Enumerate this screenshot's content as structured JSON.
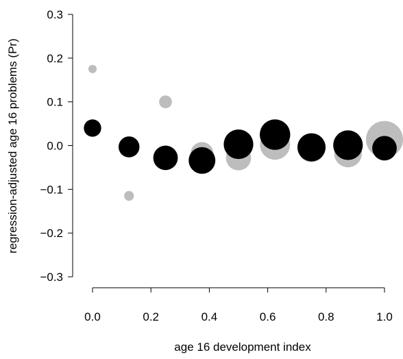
{
  "chart_data": {
    "type": "scatter",
    "title": "",
    "xlabel": "age 16 development index",
    "ylabel": "regression-adjusted age 16 problems (Pr)",
    "xlim": [
      0.0,
      1.0
    ],
    "ylim": [
      -0.3,
      0.3
    ],
    "xticks": [
      "0.0",
      "0.2",
      "0.4",
      "0.6",
      "0.8",
      "1.0"
    ],
    "yticks": [
      "-0.3",
      "-0.2",
      "-0.1",
      "0.0",
      "0.1",
      "0.2",
      "0.3"
    ],
    "grid": false,
    "legend": "none",
    "series": [
      {
        "color": "#bdbdbd",
        "points": [
          {
            "x": 0.0,
            "y": 0.175,
            "size": 0.05
          },
          {
            "x": 0.125,
            "y": -0.115,
            "size": 0.07
          },
          {
            "x": 0.25,
            "y": 0.1,
            "size": 0.12
          },
          {
            "x": 0.375,
            "y": -0.018,
            "size": 0.38
          },
          {
            "x": 0.5,
            "y": -0.028,
            "size": 0.46
          },
          {
            "x": 0.625,
            "y": 0.002,
            "size": 0.66
          },
          {
            "x": 0.75,
            "y": -0.008,
            "size": 0.5
          },
          {
            "x": 0.875,
            "y": -0.018,
            "size": 0.56
          },
          {
            "x": 1.0,
            "y": 0.014,
            "size": 1.0
          }
        ]
      },
      {
        "color": "#000000",
        "points": [
          {
            "x": 0.0,
            "y": 0.04,
            "size": 0.22
          },
          {
            "x": 0.125,
            "y": -0.003,
            "size": 0.32
          },
          {
            "x": 0.25,
            "y": -0.028,
            "size": 0.44
          },
          {
            "x": 0.375,
            "y": -0.034,
            "size": 0.52
          },
          {
            "x": 0.5,
            "y": 0.003,
            "size": 0.64
          },
          {
            "x": 0.625,
            "y": 0.025,
            "size": 0.68
          },
          {
            "x": 0.75,
            "y": -0.004,
            "size": 0.58
          },
          {
            "x": 0.875,
            "y": 0.001,
            "size": 0.64
          },
          {
            "x": 1.0,
            "y": -0.006,
            "size": 0.44
          }
        ]
      }
    ]
  }
}
